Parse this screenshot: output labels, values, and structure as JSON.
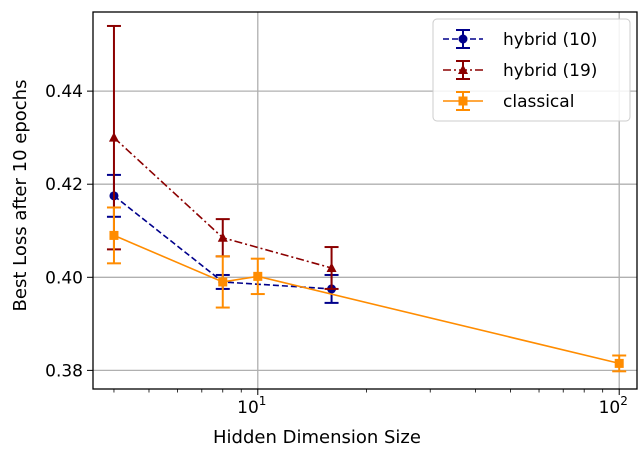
{
  "chart_data": {
    "type": "line",
    "xscale": "log",
    "xlabel": "Hidden Dimension Size",
    "ylabel": "Best Loss after 10 epochs",
    "xlim": [
      3.5,
      112
    ],
    "ylim": [
      0.376,
      0.457
    ],
    "x_ticks_major": [
      {
        "value": 10,
        "base": "10",
        "exp": "1"
      },
      {
        "value": 100,
        "base": "10",
        "exp": "2"
      }
    ],
    "x_ticks_minor": [
      4,
      5,
      6,
      7,
      8,
      9,
      20,
      30,
      40,
      50,
      60,
      70,
      80,
      90
    ],
    "y_ticks": [
      {
        "value": 0.38,
        "label": "0.38"
      },
      {
        "value": 0.4,
        "label": "0.40"
      },
      {
        "value": 0.42,
        "label": "0.42"
      },
      {
        "value": 0.44,
        "label": "0.44"
      }
    ],
    "grid": true,
    "legend_position": "top-right",
    "series": [
      {
        "name": "hybrid (10)",
        "color": "#00008b",
        "linestyle": "dashed",
        "marker": "circle",
        "points": [
          {
            "x": 4,
            "y": 0.4175,
            "err": 0.0045
          },
          {
            "x": 8,
            "y": 0.399,
            "err": 0.0015
          },
          {
            "x": 16,
            "y": 0.3975,
            "err": 0.003
          }
        ]
      },
      {
        "name": "hybrid (19)",
        "color": "#8b0000",
        "linestyle": "dashdot",
        "marker": "triangle",
        "points": [
          {
            "x": 4,
            "y": 0.43,
            "err": 0.024
          },
          {
            "x": 8,
            "y": 0.4085,
            "err": 0.004
          },
          {
            "x": 16,
            "y": 0.402,
            "err": 0.0045
          }
        ]
      },
      {
        "name": "classical",
        "color": "#ff8c00",
        "linestyle": "solid",
        "marker": "square",
        "points": [
          {
            "x": 4,
            "y": 0.409,
            "err": 0.006
          },
          {
            "x": 8,
            "y": 0.399,
            "err": 0.0055
          },
          {
            "x": 10,
            "y": 0.4002,
            "err": 0.0038
          },
          {
            "x": 100,
            "y": 0.3815,
            "err": 0.0017
          }
        ]
      }
    ]
  }
}
